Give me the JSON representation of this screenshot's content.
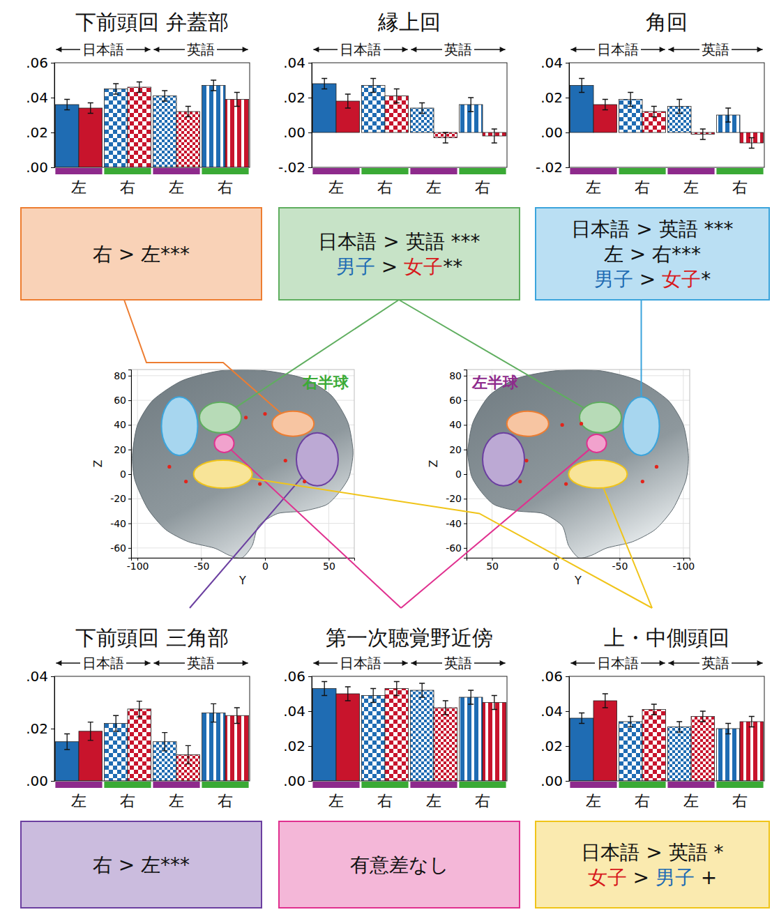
{
  "chart_data": [
    {
      "type": "bar",
      "title": "下前頭回 弁蓋部",
      "color": "#ed7d31",
      "categories": [
        "左",
        "右",
        "左",
        "右"
      ],
      "group_labels": [
        "日本語",
        "英語"
      ],
      "series": [
        {
          "color": "#1f6cb3",
          "values": [
            0.036,
            0.045,
            0.041,
            0.047
          ],
          "errors": [
            0.003,
            0.003,
            0.003,
            0.003
          ]
        },
        {
          "color": "#c8142c",
          "values": [
            0.034,
            0.046,
            0.032,
            0.039
          ],
          "errors": [
            0.003,
            0.003,
            0.003,
            0.004
          ]
        }
      ],
      "ylim": [
        0,
        0.06
      ],
      "yticks": [
        {
          "value": 0,
          "label": ".00"
        },
        {
          "value": 0.02,
          "label": ".02"
        },
        {
          "value": 0.04,
          "label": ".04"
        },
        {
          "value": 0.06,
          "label": ".06"
        }
      ],
      "annotation": [
        [
          {
            "text": "右 > 左***"
          }
        ]
      ]
    },
    {
      "type": "bar",
      "title": "縁上回",
      "color": "#5fae5f",
      "categories": [
        "左",
        "右",
        "左",
        "右"
      ],
      "group_labels": [
        "日本語",
        "英語"
      ],
      "series": [
        {
          "color": "#1f6cb3",
          "values": [
            0.028,
            0.027,
            0.014,
            0.016
          ],
          "errors": [
            0.003,
            0.004,
            0.003,
            0.004
          ]
        },
        {
          "color": "#c8142c",
          "values": [
            0.018,
            0.021,
            -0.003,
            -0.002
          ],
          "errors": [
            0.004,
            0.004,
            0.003,
            0.004
          ]
        }
      ],
      "ylim": [
        -0.02,
        0.04
      ],
      "yticks": [
        {
          "value": -0.02,
          "label": "-.02"
        },
        {
          "value": 0,
          "label": ".00"
        },
        {
          "value": 0.02,
          "label": ".02"
        },
        {
          "value": 0.04,
          "label": ".04"
        }
      ],
      "annotation": [
        [
          {
            "text": "日本語 > 英語 ***"
          }
        ],
        [
          {
            "text": "男子",
            "color": "#1f6cb3"
          },
          {
            "text": " > "
          },
          {
            "text": "女子",
            "color": "#d7191c"
          },
          {
            "text": "**"
          }
        ]
      ]
    },
    {
      "type": "bar",
      "title": "角回",
      "color": "#3ba4dc",
      "categories": [
        "左",
        "右",
        "左",
        "右"
      ],
      "group_labels": [
        "日本語",
        "英語"
      ],
      "series": [
        {
          "color": "#1f6cb3",
          "values": [
            0.027,
            0.019,
            0.015,
            0.01
          ],
          "errors": [
            0.004,
            0.004,
            0.004,
            0.004
          ]
        },
        {
          "color": "#c8142c",
          "values": [
            0.016,
            0.012,
            -0.001,
            -0.006
          ],
          "errors": [
            0.003,
            0.003,
            0.003,
            0.003
          ]
        }
      ],
      "ylim": [
        -0.02,
        0.04
      ],
      "yticks": [
        {
          "value": -0.02,
          "label": "-.02"
        },
        {
          "value": 0,
          "label": ".00"
        },
        {
          "value": 0.02,
          "label": ".02"
        },
        {
          "value": 0.04,
          "label": ".04"
        }
      ],
      "annotation": [
        [
          {
            "text": "日本語 > 英語 ***"
          }
        ],
        [
          {
            "text": "左 > 右***"
          }
        ],
        [
          {
            "text": "男子",
            "color": "#1f6cb3"
          },
          {
            "text": " > "
          },
          {
            "text": "女子",
            "color": "#d7191c"
          },
          {
            "text": "*"
          }
        ]
      ]
    },
    {
      "type": "bar",
      "title": "下前頭回 三角部",
      "color": "#6b3fa0",
      "categories": [
        "左",
        "右",
        "左",
        "右"
      ],
      "group_labels": [
        "日本語",
        "英語"
      ],
      "series": [
        {
          "color": "#1f6cb3",
          "values": [
            0.015,
            0.022,
            0.015,
            0.026
          ],
          "errors": [
            0.003,
            0.003,
            0.0035,
            0.0035
          ]
        },
        {
          "color": "#c8142c",
          "values": [
            0.019,
            0.0275,
            0.01,
            0.025
          ],
          "errors": [
            0.0035,
            0.003,
            0.0035,
            0.003
          ]
        }
      ],
      "ylim": [
        0,
        0.04
      ],
      "yticks": [
        {
          "value": 0,
          "label": ".00"
        },
        {
          "value": 0.02,
          "label": ".02"
        },
        {
          "value": 0.04,
          "label": ".04"
        }
      ],
      "annotation": [
        [
          {
            "text": "右 > 左***"
          }
        ]
      ]
    },
    {
      "type": "bar",
      "title": "第一次聴覚野近傍",
      "color": "#e0308f",
      "categories": [
        "左",
        "右",
        "左",
        "右"
      ],
      "group_labels": [
        "日本語",
        "英語"
      ],
      "series": [
        {
          "color": "#1f6cb3",
          "values": [
            0.053,
            0.049,
            0.052,
            0.048
          ],
          "errors": [
            0.004,
            0.004,
            0.004,
            0.004
          ]
        },
        {
          "color": "#c8142c",
          "values": [
            0.05,
            0.053,
            0.042,
            0.045
          ],
          "errors": [
            0.004,
            0.004,
            0.004,
            0.004
          ]
        }
      ],
      "ylim": [
        0,
        0.06
      ],
      "yticks": [
        {
          "value": 0,
          "label": ".00"
        },
        {
          "value": 0.02,
          "label": ".02"
        },
        {
          "value": 0.04,
          "label": ".04"
        },
        {
          "value": 0.06,
          "label": ".06"
        }
      ],
      "annotation": [
        [
          {
            "text": "有意差なし"
          }
        ]
      ]
    },
    {
      "type": "bar",
      "title": "上・中側頭回",
      "color": "#f0c419",
      "categories": [
        "左",
        "右",
        "左",
        "右"
      ],
      "group_labels": [
        "日本語",
        "英語"
      ],
      "series": [
        {
          "color": "#1f6cb3",
          "values": [
            0.036,
            0.034,
            0.031,
            0.03
          ],
          "errors": [
            0.003,
            0.003,
            0.003,
            0.003
          ]
        },
        {
          "color": "#c8142c",
          "values": [
            0.046,
            0.041,
            0.037,
            0.034
          ],
          "errors": [
            0.004,
            0.003,
            0.003,
            0.003
          ]
        }
      ],
      "ylim": [
        0,
        0.06
      ],
      "yticks": [
        {
          "value": 0,
          "label": ".00"
        },
        {
          "value": 0.02,
          "label": ".02"
        },
        {
          "value": 0.04,
          "label": ".04"
        },
        {
          "value": 0.06,
          "label": ".06"
        }
      ],
      "annotation": [
        [
          {
            "text": "日本語 > 英語 *"
          }
        ],
        [
          {
            "text": "女子",
            "color": "#d7191c"
          },
          {
            "text": " > "
          },
          {
            "text": "男子",
            "color": "#1f6cb3"
          },
          {
            "text": " +"
          }
        ]
      ]
    },
    {
      "type": "scatter",
      "title": "右半球",
      "color": "#e3241b",
      "grid": true,
      "x": [
        -15,
        0,
        -75,
        -62,
        16,
        31,
        -4
      ],
      "values": [
        46,
        49,
        6,
        -6,
        11,
        -6,
        -8
      ],
      "xlim": [
        -105,
        70
      ],
      "ylim": [
        -68,
        85
      ],
      "xticks": [
        -100,
        -50,
        0,
        50
      ],
      "yticks": [
        80,
        60,
        40,
        20,
        0,
        -20,
        -40,
        -60
      ],
      "x_label": "Y",
      "y_label": "Z"
    },
    {
      "type": "scatter",
      "title": "左半球",
      "color": "#e3241b",
      "grid": true,
      "x": [
        -5,
        -20,
        23,
        28,
        -8,
        -79,
        -68
      ],
      "values": [
        40,
        41,
        11,
        -6,
        -8,
        6,
        -6
      ],
      "xlim": [
        70,
        -105
      ],
      "ylim": [
        -68,
        85
      ],
      "xticks": [
        50,
        0,
        -50,
        -100
      ],
      "yticks": [
        80,
        60,
        40,
        20,
        0,
        -20,
        -40,
        -60
      ],
      "x_label": "Y",
      "y_label": "Z"
    }
  ]
}
